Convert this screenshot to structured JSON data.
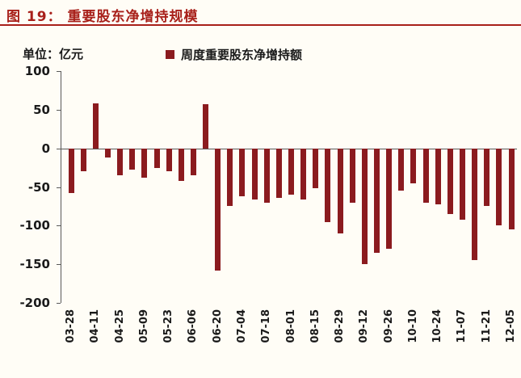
{
  "header": {
    "title": "图 19：  重要股东净增持规模"
  },
  "chart": {
    "unit_label": "单位：亿元",
    "legend_label": "周度重要股东净增持额"
  },
  "colors": {
    "accent": "#A8201A",
    "bar": "#8B1B1F",
    "axis": "#595959",
    "text": "#1A1A1A",
    "background": "#FFFDF6"
  },
  "chart_data": {
    "type": "bar",
    "title": "重要股东净增持规模",
    "figure_label": "图 19",
    "unit": "亿元",
    "legend": [
      "周度重要股东净增持额"
    ],
    "legend_position": "top",
    "grid": false,
    "ylim": [
      -200,
      100
    ],
    "yticks": [
      100,
      50,
      0,
      -50,
      -100,
      -150,
      -200
    ],
    "x_tick_labels": [
      "03-28",
      "04-11",
      "04-25",
      "05-09",
      "05-23",
      "06-06",
      "06-20",
      "07-04",
      "07-18",
      "08-01",
      "08-15",
      "08-29",
      "09-12",
      "09-26",
      "10-10",
      "10-24",
      "11-07",
      "11-21",
      "12-05"
    ],
    "x_label_every": 2,
    "values": [
      -58,
      -30,
      58,
      -12,
      -35,
      -28,
      -38,
      -25,
      -30,
      -42,
      -35,
      57,
      -158,
      -75,
      -62,
      -66,
      -70,
      -64,
      -60,
      -66,
      -52,
      -95,
      -110,
      -70,
      -150,
      -135,
      -130,
      -55,
      -45,
      -70,
      -72,
      -85,
      -92,
      -145,
      -75,
      -100,
      -105
    ]
  }
}
